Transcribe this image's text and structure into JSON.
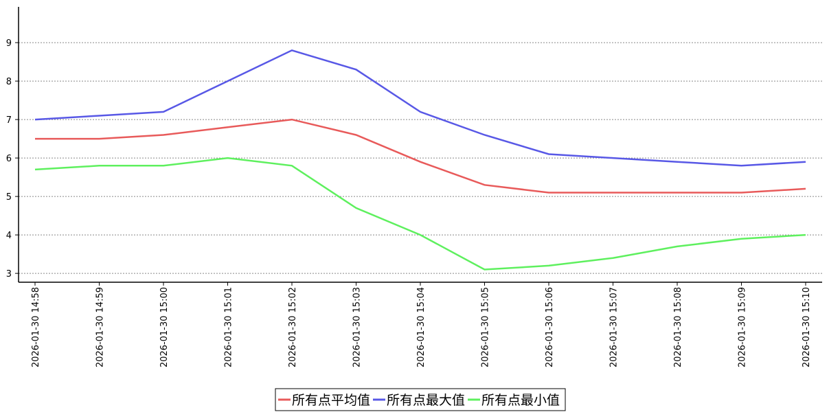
{
  "chart_data": {
    "type": "line",
    "categories": [
      "2026-01-30 14:58",
      "2026-01-30 14:59",
      "2026-01-30 15:00",
      "2026-01-30 15:01",
      "2026-01-30 15:02",
      "2026-01-30 15:03",
      "2026-01-30 15:04",
      "2026-01-30 15:05",
      "2026-01-30 15:06",
      "2026-01-30 15:07",
      "2026-01-30 15:08",
      "2026-01-30 15:09",
      "2026-01-30 15:10"
    ],
    "series": [
      {
        "name": "所有点平均值",
        "color": "#e85a5a",
        "values": [
          6.5,
          6.5,
          6.6,
          6.8,
          7.0,
          6.6,
          5.9,
          5.3,
          5.1,
          5.1,
          5.1,
          5.1,
          5.2
        ]
      },
      {
        "name": "所有点最大值",
        "color": "#5858e6",
        "values": [
          7.0,
          7.1,
          7.2,
          8.0,
          8.8,
          8.3,
          7.2,
          6.6,
          6.1,
          6.0,
          5.9,
          5.8,
          5.9
        ]
      },
      {
        "name": "所有点最小值",
        "color": "#5ef05e",
        "values": [
          5.7,
          5.8,
          5.8,
          6.0,
          5.8,
          4.7,
          4.0,
          3.1,
          3.2,
          3.4,
          3.7,
          3.9,
          4.0
        ]
      }
    ],
    "ylim": [
      2.77,
      9.93
    ],
    "yticks": [
      3,
      4,
      5,
      6,
      7,
      8,
      9
    ],
    "grid": true,
    "legend": "bottom"
  }
}
